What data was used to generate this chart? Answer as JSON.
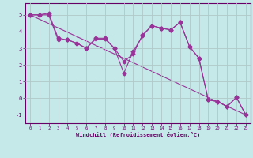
{
  "xlabel": "Windchill (Refroidissement éolien,°C)",
  "xlim": [
    -0.5,
    23.5
  ],
  "ylim": [
    -1.5,
    5.7
  ],
  "yticks": [
    -1,
    0,
    1,
    2,
    3,
    4,
    5
  ],
  "xticks": [
    0,
    1,
    2,
    3,
    4,
    5,
    6,
    7,
    8,
    9,
    10,
    11,
    12,
    13,
    14,
    15,
    16,
    17,
    18,
    19,
    20,
    21,
    22,
    23
  ],
  "bg_color": "#c5e8e8",
  "line_color": "#993399",
  "grid_color": "#b0c8c8",
  "line1_x": [
    0,
    1,
    2,
    3,
    4,
    5,
    6,
    7,
    8,
    9,
    10,
    11,
    12,
    13,
    14,
    15,
    16,
    17,
    18,
    19,
    20,
    21,
    22,
    23
  ],
  "line1_y": [
    5.0,
    5.0,
    5.1,
    3.6,
    3.5,
    3.3,
    3.0,
    3.6,
    3.6,
    3.0,
    1.5,
    2.8,
    3.75,
    4.35,
    4.2,
    4.1,
    4.55,
    3.1,
    2.4,
    -0.1,
    -0.2,
    -0.5,
    0.05,
    -1.0
  ],
  "line2_x": [
    0,
    1,
    2,
    3,
    4,
    5,
    6,
    7,
    8,
    9,
    10,
    11,
    12,
    13,
    14,
    15,
    16,
    17,
    18,
    19,
    20,
    21,
    22,
    23
  ],
  "line2_y": [
    5.0,
    5.0,
    5.0,
    3.5,
    3.5,
    3.3,
    3.0,
    3.55,
    3.55,
    3.0,
    2.2,
    2.65,
    3.8,
    4.35,
    4.2,
    4.1,
    4.55,
    3.1,
    2.4,
    -0.1,
    -0.2,
    -0.5,
    0.05,
    -1.0
  ],
  "line3_x": [
    0,
    23
  ],
  "line3_y": [
    5.0,
    -1.0
  ],
  "marker": "D",
  "markersize": 2.5,
  "lw": 0.8
}
